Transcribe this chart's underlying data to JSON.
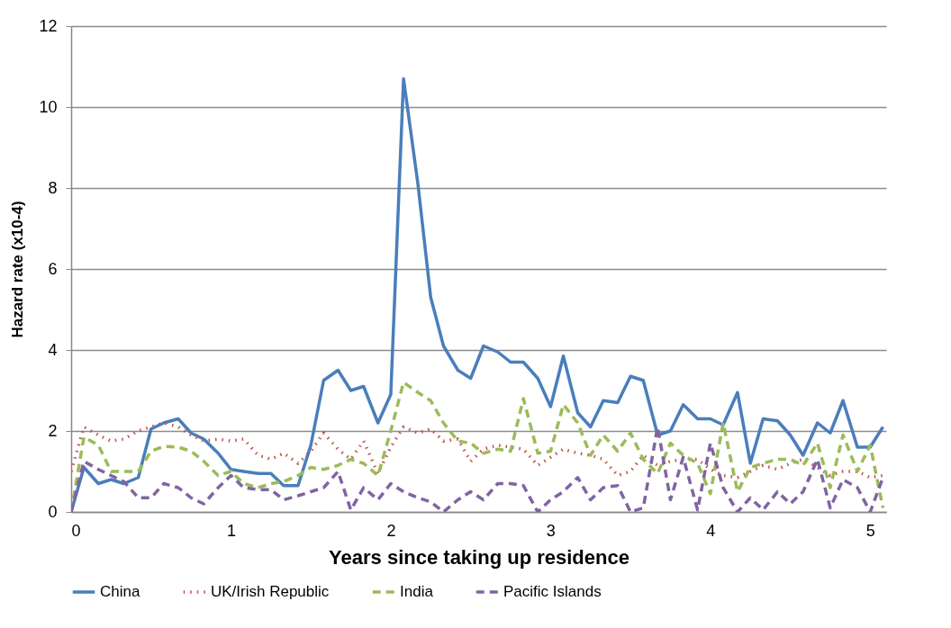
{
  "chart_data": {
    "type": "line",
    "xlabel": "Years since taking up residence",
    "ylabel": "Hazard rate (x10-4)",
    "x": [
      0,
      0.08,
      0.17,
      0.25,
      0.33,
      0.42,
      0.5,
      0.58,
      0.67,
      0.75,
      0.83,
      0.92,
      1,
      1.08,
      1.17,
      1.25,
      1.33,
      1.42,
      1.5,
      1.58,
      1.67,
      1.75,
      1.83,
      1.92,
      2,
      2.08,
      2.17,
      2.25,
      2.33,
      2.42,
      2.5,
      2.58,
      2.67,
      2.75,
      2.83,
      2.92,
      3,
      3.08,
      3.17,
      3.25,
      3.33,
      3.42,
      3.5,
      3.58,
      3.67,
      3.75,
      3.83,
      3.92,
      4,
      4.08,
      4.17,
      4.25,
      4.33,
      4.42,
      4.5,
      4.58,
      4.67,
      4.75,
      4.83,
      4.92,
      5,
      5.08
    ],
    "series": [
      {
        "name": "China",
        "color": "#4a7ebb",
        "line_style": "solid",
        "values": [
          0,
          1.1,
          0.7,
          0.8,
          0.7,
          0.85,
          2.05,
          2.2,
          2.3,
          1.95,
          1.8,
          1.45,
          1.05,
          1,
          0.95,
          0.95,
          0.65,
          0.65,
          1.65,
          3.25,
          3.5,
          3,
          3.1,
          2.2,
          2.9,
          10.7,
          8.1,
          5.3,
          4.1,
          3.5,
          3.3,
          4.1,
          3.95,
          3.7,
          3.7,
          3.3,
          2.6,
          3.85,
          2.45,
          2.1,
          2.75,
          2.7,
          3.35,
          3.25,
          1.9,
          2,
          2.65,
          2.3,
          2.3,
          2.15,
          2.95,
          1.2,
          2.3,
          2.25,
          1.9,
          1.4,
          2.2,
          1.95,
          2.75,
          1.6,
          1.6,
          2.1
        ]
      },
      {
        "name": "UK/Irish Republic",
        "color": "#c0504d",
        "line_style": "dotted",
        "values": [
          1,
          2.1,
          1.9,
          1.75,
          1.8,
          2,
          2.1,
          2.2,
          2.1,
          1.9,
          1.75,
          1.8,
          1.75,
          1.8,
          1.4,
          1.3,
          1.45,
          1.2,
          1.5,
          1.95,
          1.55,
          1.3,
          1.75,
          0.95,
          1.6,
          2.1,
          1.95,
          2.05,
          1.75,
          1.8,
          1.25,
          1.55,
          1.65,
          1.6,
          1.55,
          1.15,
          1.35,
          1.55,
          1.45,
          1.4,
          1.3,
          0.9,
          1,
          1.4,
          1.15,
          1.25,
          1.3,
          1.3,
          1.05,
          0.9,
          0.85,
          1,
          1.15,
          1.05,
          1.2,
          1.3,
          1.1,
          0.9,
          1,
          1,
          0.85,
          0.9
        ]
      },
      {
        "name": "India",
        "color": "#9bbb59",
        "line_style": "dashed",
        "values": [
          0,
          1.85,
          1.65,
          1,
          1,
          1,
          1.5,
          1.62,
          1.6,
          1.5,
          1.25,
          0.9,
          1,
          0.7,
          0.6,
          0.7,
          0.75,
          0.9,
          1.1,
          1.05,
          1.15,
          1.3,
          1.2,
          0.9,
          2,
          3.2,
          2.95,
          2.75,
          2.2,
          1.75,
          1.7,
          1.45,
          1.55,
          1.5,
          2.8,
          1.45,
          1.5,
          2.65,
          2.2,
          1.4,
          1.9,
          1.5,
          1.95,
          1.3,
          0.95,
          1.7,
          1.4,
          1.2,
          0.45,
          2.2,
          0.5,
          1.1,
          1.2,
          1.3,
          1.3,
          1.15,
          1.7,
          0.6,
          1.9,
          1,
          1.65,
          0.1
        ]
      },
      {
        "name": "Pacific Islands",
        "color": "#8064a2",
        "line_style": "dashed",
        "values": [
          0,
          1.25,
          1.05,
          0.9,
          0.75,
          0.35,
          0.35,
          0.7,
          0.6,
          0.35,
          0.2,
          0.6,
          0.9,
          0.6,
          0.55,
          0.55,
          0.3,
          0.4,
          0.5,
          0.6,
          1,
          0.05,
          0.6,
          0.3,
          0.7,
          0.5,
          0.35,
          0.25,
          0,
          0.3,
          0.5,
          0.3,
          0.7,
          0.7,
          0.65,
          0,
          0.3,
          0.5,
          0.85,
          0.3,
          0.6,
          0.65,
          0,
          0.1,
          2.1,
          0.3,
          1.35,
          0.05,
          1.7,
          0.6,
          0,
          0.35,
          0.05,
          0.5,
          0.2,
          0.5,
          1.3,
          0.1,
          0.8,
          0.6,
          0,
          0.85
        ]
      }
    ],
    "xlim": [
      0,
      5.1
    ],
    "xticks": [
      0,
      1,
      2,
      3,
      4,
      5
    ],
    "ylim": [
      0,
      12
    ],
    "yticks": [
      0,
      2,
      4,
      6,
      8,
      10,
      12
    ],
    "grid": "y",
    "legend": "bottom",
    "marker": "none"
  }
}
